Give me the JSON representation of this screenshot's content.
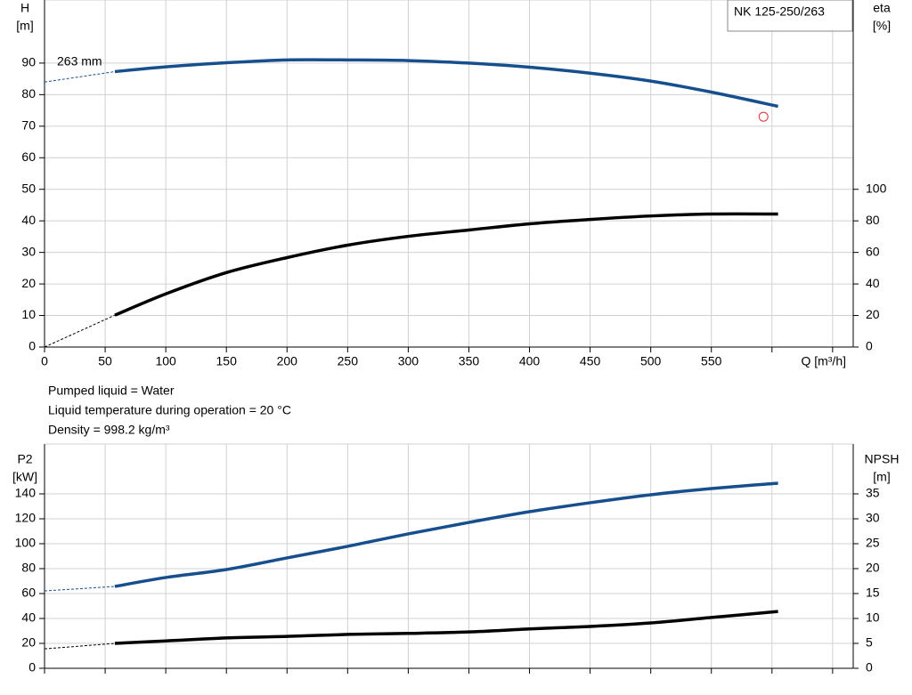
{
  "chart_data": [
    {
      "type": "line",
      "legend_box": "NK 125-250/263",
      "y_label": [
        "H",
        "[m]"
      ],
      "y2_label": [
        "eta",
        "[%]"
      ],
      "x_label": "Q [m³/h]",
      "xlim": [
        0,
        667
      ],
      "ylim": [
        0,
        110
      ],
      "y2lim": [
        0,
        220
      ],
      "xticks": [
        0,
        50,
        100,
        150,
        200,
        250,
        300,
        350,
        400,
        450,
        500,
        550
      ],
      "xgrid": [
        0,
        50,
        100,
        150,
        200,
        250,
        300,
        350,
        400,
        450,
        500,
        550,
        600,
        650
      ],
      "yticks": [
        0,
        10,
        20,
        30,
        40,
        50,
        60,
        70,
        80,
        90
      ],
      "y2ticks": [
        0,
        20,
        40,
        60,
        80,
        100
      ],
      "grid": true,
      "annotation": "263 mm",
      "marker": {
        "x": 593,
        "y": 73,
        "color": "#e03030"
      },
      "x": [
        58,
        100,
        150,
        200,
        250,
        300,
        350,
        400,
        450,
        500,
        550,
        605
      ],
      "series": [
        {
          "color": "#174f8e",
          "values": [
            87.3,
            88.8,
            90.1,
            91.0,
            91.0,
            90.8,
            90.0,
            88.7,
            86.8,
            84.3,
            80.8,
            76.3
          ],
          "extension": {
            "x": [
              0,
              58
            ],
            "values": [
              84.0,
              87.3
            ]
          }
        },
        {
          "color": "#000000",
          "axis": "y2",
          "values": [
            20.2,
            33.7,
            47.2,
            56.7,
            64.6,
            70.2,
            74.2,
            78.1,
            80.9,
            83.1,
            84.3,
            84.3
          ],
          "extension": {
            "x": [
              0,
              58
            ],
            "values": [
              0,
              20.2
            ]
          }
        }
      ]
    },
    {
      "type": "line",
      "y_label": [
        "P2",
        "[kW]"
      ],
      "y2_label": [
        "NPSH",
        "[m]"
      ],
      "xlim": [
        0,
        667
      ],
      "ylim": [
        0,
        180
      ],
      "y2lim": [
        0,
        45
      ],
      "xgrid": [
        0,
        50,
        100,
        150,
        200,
        250,
        300,
        350,
        400,
        450,
        500,
        550,
        600,
        650
      ],
      "yticks": [
        0,
        20,
        40,
        60,
        80,
        100,
        120,
        140
      ],
      "y2ticks": [
        0,
        5,
        10,
        15,
        20,
        25,
        30,
        35
      ],
      "grid": true,
      "x": [
        58,
        100,
        150,
        200,
        250,
        300,
        350,
        400,
        450,
        500,
        550,
        605
      ],
      "series": [
        {
          "color": "#174f8e",
          "values": [
            65.7,
            72.9,
            79.3,
            88.6,
            97.9,
            107.9,
            117.1,
            125.7,
            132.9,
            139.3,
            144.3,
            148.6
          ],
          "extension": {
            "x": [
              0,
              58
            ],
            "values": [
              62.1,
              65.7
            ]
          }
        },
        {
          "color": "#000000",
          "axis": "y2",
          "values": [
            5.0,
            5.5,
            6.1,
            6.4,
            6.8,
            7.0,
            7.3,
            7.9,
            8.4,
            9.1,
            10.2,
            11.4
          ],
          "extension": {
            "x": [
              0,
              58
            ],
            "values": [
              3.9,
              5.0
            ]
          }
        }
      ]
    }
  ],
  "notes": [
    "Pumped liquid = Water",
    "Liquid temperature during operation = 20 °C",
    "Density = 998.2 kg/m³"
  ]
}
